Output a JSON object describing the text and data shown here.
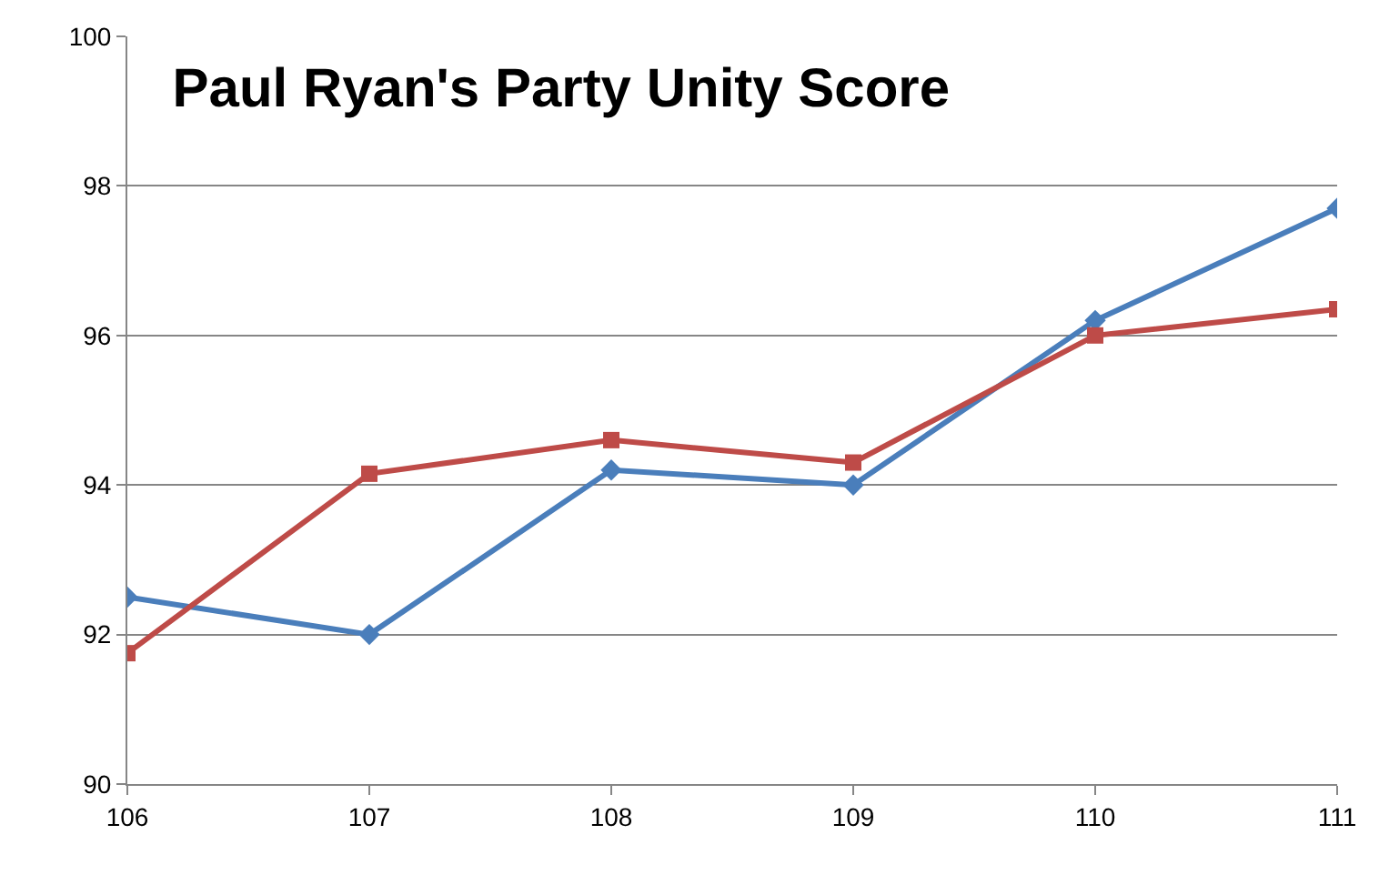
{
  "chart_data": {
    "type": "line",
    "title": "Paul Ryan's Party Unity Score",
    "x": [
      106,
      107,
      108,
      109,
      110,
      111
    ],
    "series": [
      {
        "color": "#4a7ebb",
        "marker": "diamond",
        "values": [
          92.5,
          92.0,
          94.2,
          94.0,
          96.2,
          97.7
        ]
      },
      {
        "color": "#be4b48",
        "marker": "square",
        "values": [
          91.75,
          94.15,
          94.6,
          94.3,
          96.0,
          96.35
        ]
      }
    ],
    "xlim": [
      106,
      111
    ],
    "xticks": [
      106,
      107,
      108,
      109,
      110,
      111
    ],
    "ylim": [
      90,
      100
    ],
    "yticks": [
      90,
      92,
      94,
      96,
      98,
      100
    ],
    "grid": "y",
    "legend": false
  }
}
